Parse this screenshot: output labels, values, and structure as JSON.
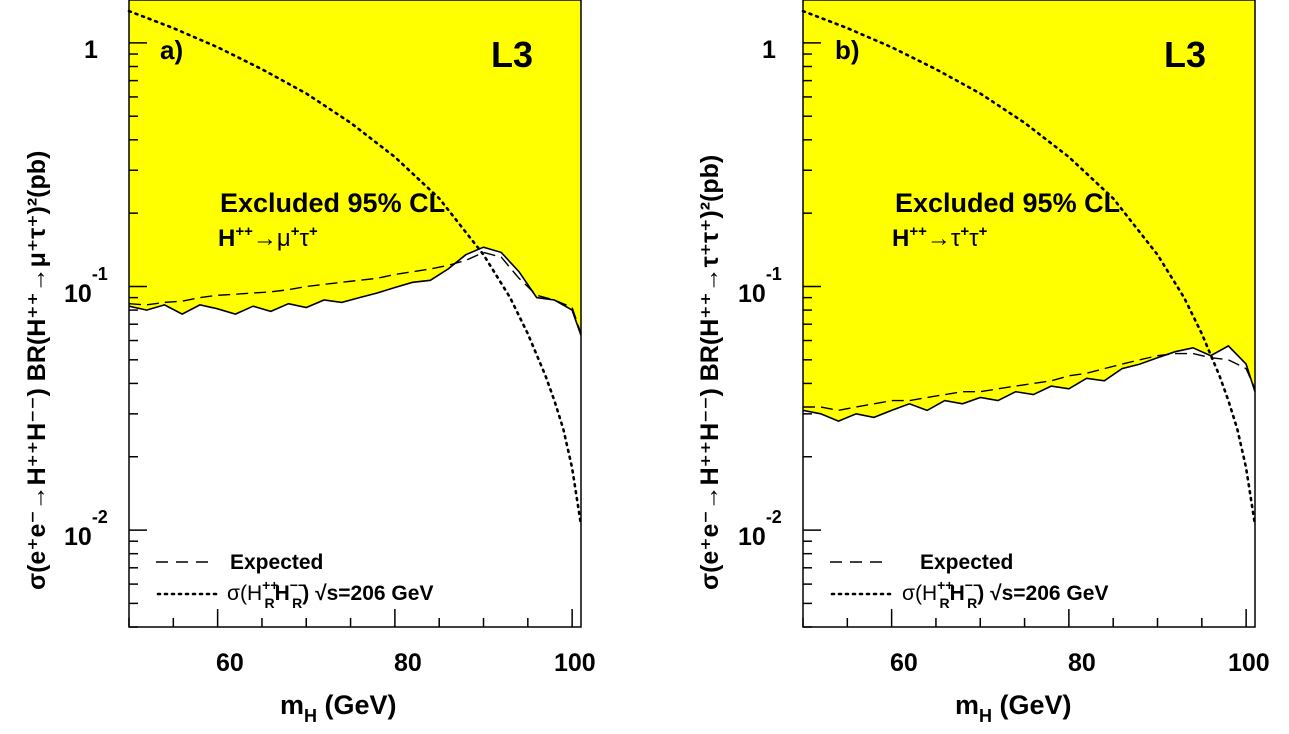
{
  "panels": [
    {
      "panel_label": "a)",
      "experiment": "L3",
      "excluded_label": "Excluded 95% CL",
      "channel_prefix": "H",
      "channel_charge": "++",
      "channel_arrow": "→",
      "channel_p1": "μ",
      "channel_p2": "τ",
      "ylabel_main": "σ(e⁺e⁻→H⁺⁺H⁻⁻) BR(H⁺⁺→μ⁺τ⁺)²(pb)",
      "xlabel": "m",
      "xlabel_sub": "H",
      "xlabel_unit": " (GeV)",
      "legend": [
        {
          "key": "expected",
          "label": "Expected"
        },
        {
          "key": "theory",
          "label": "σ(H",
          "sup": "++",
          "sub": "R",
          "sup2": "−−",
          "tail": ") √s=206 GeV"
        }
      ],
      "x_ticks": [
        "60",
        "80",
        "100"
      ],
      "y_ticks": [
        {
          "value": 1,
          "base": "1",
          "exp": ""
        },
        {
          "value": 0.1,
          "base": "10",
          "exp": "-1"
        },
        {
          "value": 0.01,
          "base": "10",
          "exp": "-2"
        }
      ],
      "chart_data": {
        "type": "line",
        "log_y": true,
        "xlim": [
          50,
          101
        ],
        "ylim": [
          0.004,
          1.5
        ],
        "series": [
          {
            "key": "observed",
            "x": [
              50,
              52,
              54,
              56,
              58,
              60,
              62,
              64,
              66,
              68,
              70,
              72,
              74,
              76,
              78,
              80,
              82,
              84,
              86,
              88,
              90,
              92,
              94,
              96,
              98,
              100,
              101
            ],
            "y": [
              0.083,
              0.08,
              0.084,
              0.077,
              0.084,
              0.081,
              0.077,
              0.083,
              0.079,
              0.085,
              0.082,
              0.088,
              0.086,
              0.09,
              0.094,
              0.099,
              0.104,
              0.106,
              0.118,
              0.135,
              0.145,
              0.138,
              0.115,
              0.09,
              0.088,
              0.08,
              0.063
            ]
          },
          {
            "key": "expected",
            "x": [
              50,
              52,
              54,
              56,
              58,
              60,
              62,
              64,
              66,
              68,
              70,
              72,
              74,
              76,
              78,
              80,
              82,
              84,
              86,
              88,
              90,
              92,
              94,
              96,
              98,
              100,
              101
            ],
            "y": [
              0.085,
              0.084,
              0.086,
              0.087,
              0.09,
              0.092,
              0.093,
              0.094,
              0.095,
              0.097,
              0.1,
              0.102,
              0.104,
              0.106,
              0.108,
              0.112,
              0.115,
              0.118,
              0.122,
              0.128,
              0.138,
              0.132,
              0.108,
              0.092,
              0.088,
              0.082,
              0.064
            ]
          },
          {
            "key": "theory",
            "x": [
              50,
              55,
              60,
              65,
              70,
              75,
              80,
              85,
              90,
              93,
              95,
              97,
              98,
              99,
              100,
              101
            ],
            "y": [
              1.35,
              1.15,
              0.96,
              0.78,
              0.62,
              0.47,
              0.34,
              0.23,
              0.135,
              0.09,
              0.064,
              0.043,
              0.034,
              0.026,
              0.018,
              0.0105
            ]
          }
        ]
      }
    },
    {
      "panel_label": "b)",
      "experiment": "L3",
      "excluded_label": "Excluded 95% CL",
      "channel_prefix": "H",
      "channel_charge": "++",
      "channel_arrow": "→",
      "channel_p1": "τ",
      "channel_p2": "τ",
      "ylabel_main": "σ(e⁺e⁻→H⁺⁺H⁻⁻) BR(H⁺⁺→τ⁺τ⁺)²(pb)",
      "xlabel": "m",
      "xlabel_sub": "H",
      "xlabel_unit": " (GeV)",
      "legend": [
        {
          "key": "expected",
          "label": "Expected"
        },
        {
          "key": "theory",
          "label": "σ(H",
          "sup": "++",
          "sub": "R",
          "sup2": "−−",
          "tail": ") √s=206 GeV"
        }
      ],
      "x_ticks": [
        "60",
        "80",
        "100"
      ],
      "y_ticks": [
        {
          "value": 1,
          "base": "1",
          "exp": ""
        },
        {
          "value": 0.1,
          "base": "10",
          "exp": "-1"
        },
        {
          "value": 0.01,
          "base": "10",
          "exp": "-2"
        }
      ],
      "chart_data": {
        "type": "line",
        "log_y": true,
        "xlim": [
          50,
          101
        ],
        "ylim": [
          0.004,
          1.5
        ],
        "series": [
          {
            "key": "observed",
            "x": [
              50,
              52,
              54,
              56,
              58,
              60,
              62,
              64,
              66,
              68,
              70,
              72,
              74,
              76,
              78,
              80,
              82,
              84,
              86,
              88,
              90,
              92,
              94,
              96,
              98,
              100,
              101
            ],
            "y": [
              0.031,
              0.03,
              0.028,
              0.03,
              0.029,
              0.031,
              0.033,
              0.031,
              0.034,
              0.033,
              0.035,
              0.034,
              0.037,
              0.036,
              0.039,
              0.038,
              0.042,
              0.041,
              0.046,
              0.048,
              0.051,
              0.054,
              0.056,
              0.052,
              0.057,
              0.048,
              0.037
            ]
          },
          {
            "key": "expected",
            "x": [
              50,
              52,
              54,
              56,
              58,
              60,
              62,
              64,
              66,
              68,
              70,
              72,
              74,
              76,
              78,
              80,
              82,
              84,
              86,
              88,
              90,
              92,
              94,
              96,
              98,
              100,
              101
            ],
            "y": [
              0.032,
              0.032,
              0.031,
              0.032,
              0.033,
              0.034,
              0.034,
              0.035,
              0.036,
              0.037,
              0.037,
              0.038,
              0.039,
              0.04,
              0.041,
              0.043,
              0.044,
              0.046,
              0.048,
              0.05,
              0.052,
              0.053,
              0.053,
              0.051,
              0.05,
              0.046,
              0.038
            ]
          },
          {
            "key": "theory",
            "x": [
              50,
              55,
              60,
              65,
              70,
              75,
              80,
              85,
              90,
              93,
              95,
              97,
              98,
              99,
              100,
              101
            ],
            "y": [
              1.35,
              1.15,
              0.96,
              0.78,
              0.62,
              0.47,
              0.34,
              0.23,
              0.135,
              0.09,
              0.064,
              0.043,
              0.034,
              0.026,
              0.018,
              0.0105
            ]
          }
        ]
      }
    }
  ]
}
